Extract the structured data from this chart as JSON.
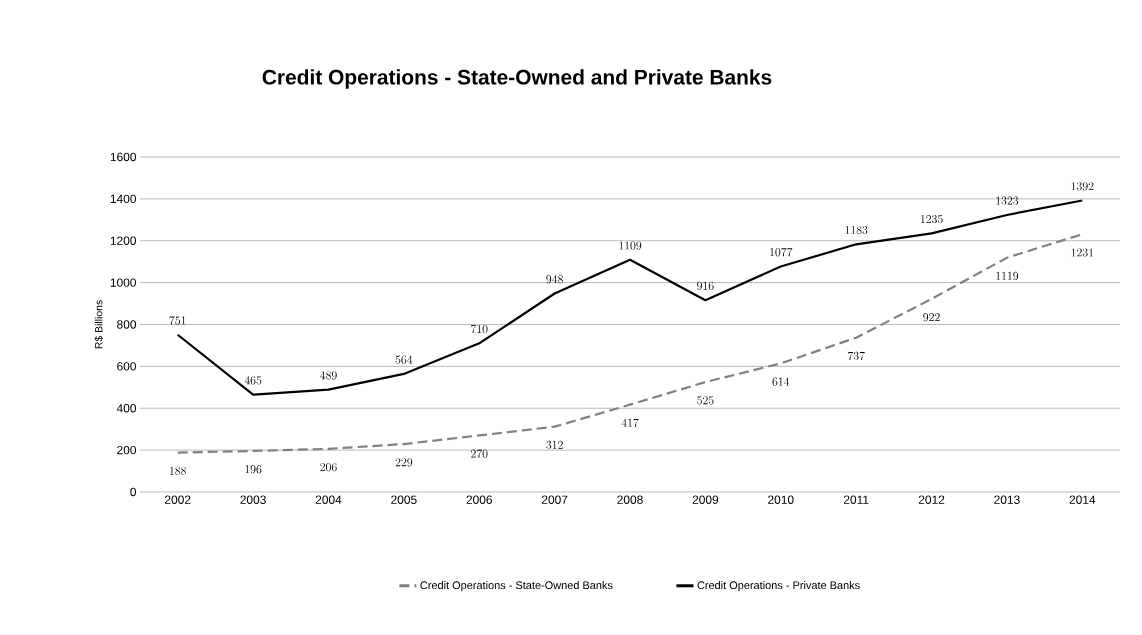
{
  "chart_data": {
    "type": "line",
    "title": "Credit Operations - State-Owned and Private Banks",
    "ylabel": "R$ Billions",
    "categories": [
      "2002",
      "2003",
      "2004",
      "2005",
      "2006",
      "2007",
      "2008",
      "2009",
      "2010",
      "2011",
      "2012",
      "2013",
      "2014"
    ],
    "series": [
      {
        "name": "Credit Operations - State-Owned Banks",
        "color": "#808080",
        "line_style": "dashed",
        "values": [
          188,
          196,
          206,
          229,
          270,
          312,
          417,
          525,
          614,
          737,
          922,
          1119,
          1231
        ]
      },
      {
        "name": "Credit Operations - Private Banks",
        "color": "#000000",
        "line_style": "solid",
        "values": [
          751,
          465,
          489,
          564,
          710,
          948,
          1109,
          916,
          1077,
          1183,
          1235,
          1323,
          1392
        ]
      }
    ],
    "ylim": [
      0,
      1600
    ],
    "yticks": [
      0,
      200,
      400,
      600,
      800,
      1000,
      1200,
      1400,
      1600
    ],
    "grid": "y",
    "legend": "bottom",
    "marker": "none",
    "data_labels": true
  }
}
